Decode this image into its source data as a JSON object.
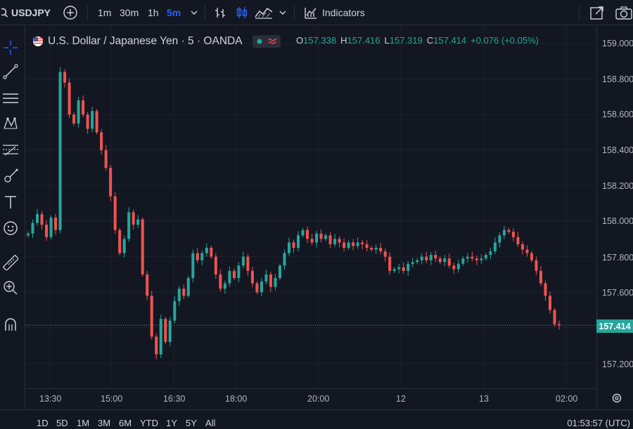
{
  "toolbar": {
    "symbol": "USDJPY",
    "timeframes": [
      "1m",
      "30m",
      "1h",
      "5m"
    ],
    "active_timeframe": "5m",
    "indicators_label": "Indicators"
  },
  "legend": {
    "title": "U.S. Dollar / Japanese Yen · 5 · OANDA",
    "o_key": "O",
    "o_val": "157.338",
    "h_key": "H",
    "h_val": "157.416",
    "l_key": "L",
    "l_val": "157.319",
    "c_key": "C",
    "c_val": "157.414",
    "change": "+0.076 (+0.05%)"
  },
  "price_axis": {
    "labels": [
      "159.000",
      "158.800",
      "158.600",
      "158.400",
      "158.200",
      "158.000",
      "157.800",
      "157.600",
      "157.200"
    ],
    "last_price": "157.414"
  },
  "time_axis": {
    "labels": [
      "13:30",
      "15:00",
      "16:30",
      "18:00",
      "20:00",
      "12",
      "13",
      "02:00"
    ]
  },
  "bottom": {
    "ranges": [
      "1D",
      "5D",
      "1M",
      "3M",
      "6M",
      "YTD",
      "1Y",
      "5Y",
      "All"
    ],
    "clock": "01:53:57 (UTC)"
  },
  "colors": {
    "up": "#26a69a",
    "down": "#ef5350",
    "accent": "#2962ff"
  },
  "chart_data": {
    "type": "candlestick",
    "ylim": [
      157.1,
      159.05
    ],
    "last_price": 157.414,
    "closes": [
      157.93,
      157.99,
      158.04,
      157.98,
      157.91,
      158.02,
      157.95,
      158.84,
      158.78,
      158.6,
      158.55,
      158.68,
      158.6,
      158.52,
      158.62,
      158.5,
      158.4,
      158.3,
      158.14,
      157.95,
      157.82,
      157.9,
      158.05,
      157.98,
      158.01,
      157.7,
      157.58,
      157.35,
      157.25,
      157.45,
      157.32,
      157.44,
      157.55,
      157.62,
      157.58,
      157.68,
      157.82,
      157.78,
      157.82,
      157.85,
      157.8,
      157.7,
      157.62,
      157.65,
      157.72,
      157.68,
      157.75,
      157.8,
      157.72,
      157.65,
      157.6,
      157.66,
      157.7,
      157.63,
      157.68,
      157.75,
      157.82,
      157.88,
      157.85,
      157.92,
      157.95,
      157.9,
      157.88,
      157.93,
      157.9,
      157.92,
      157.87,
      157.9,
      157.88,
      157.85,
      157.88,
      157.86,
      157.88,
      157.87,
      157.85,
      157.84,
      157.85,
      157.83,
      157.8,
      157.72,
      157.73,
      157.74,
      157.72,
      157.76,
      157.77,
      157.78,
      157.8,
      157.78,
      157.81,
      157.79,
      157.77,
      157.79,
      157.75,
      157.73,
      157.76,
      157.79,
      157.8,
      157.79,
      157.78,
      157.79,
      157.81,
      157.83,
      157.88,
      157.92,
      157.95,
      157.94,
      157.91,
      157.87,
      157.84,
      157.82,
      157.78,
      157.72,
      157.65,
      157.58,
      157.5,
      157.42,
      157.414
    ]
  }
}
